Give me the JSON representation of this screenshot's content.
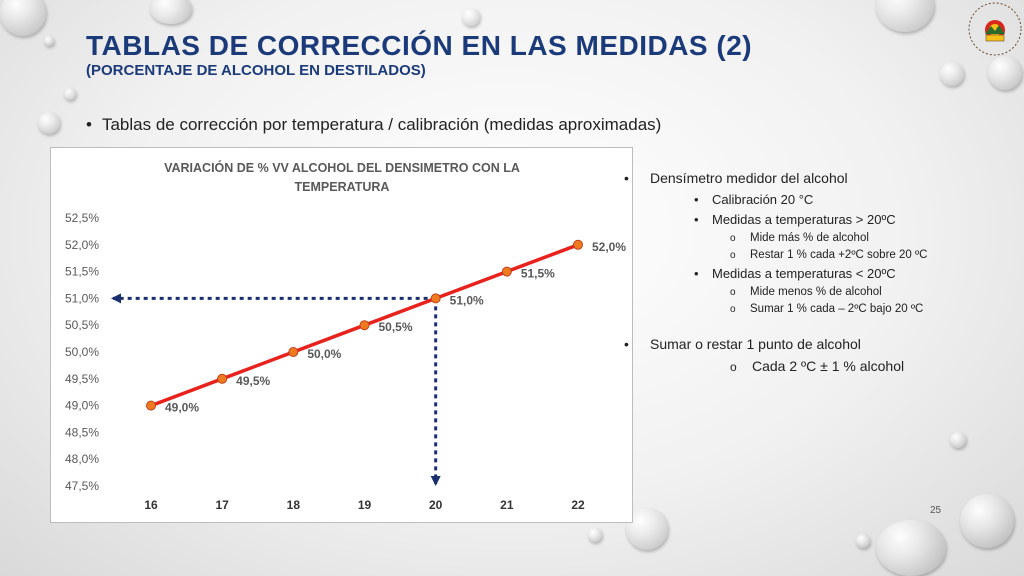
{
  "slide": {
    "title": "TABLAS DE CORRECCIÓN EN LAS MEDIDAS (2)",
    "subtitle": "(PORCENTAJE DE ALCOHOL EN DESTILADOS)",
    "main_bullet": "Tablas de corrección por temperatura / calibración (medidas aproximadas)",
    "page_number": "25",
    "logo_text": "Club Sierreño Amigos de la Montaña"
  },
  "right_panel": {
    "item1": "Densímetro medidor del alcohol",
    "item1_sub1": "Calibración 20 °C",
    "item1_sub2": "Medidas a temperaturas > 20ºC",
    "item1_sub2_a": "Mide más % de alcohol",
    "item1_sub2_b": "Restar 1 % cada +2ºC sobre 20 ºC",
    "item1_sub3": "Medidas a temperaturas < 20ºC",
    "item1_sub3_a": "Mide menos % de alcohol",
    "item1_sub3_b": "Sumar 1 % cada – 2ºC bajo 20 ºC",
    "item2": "Sumar o restar 1 punto de alcohol",
    "item2_sub1": "Cada 2 ºC  ±  1 % alcohol"
  },
  "chart_data": {
    "type": "line",
    "title": "VARIACIÓN DE % VV ALCOHOL DEL DENSIMETRO CON LA TEMPERATURA",
    "x": [
      16,
      17,
      18,
      19,
      20,
      21,
      22
    ],
    "values": [
      49.0,
      49.5,
      50.0,
      50.5,
      51.0,
      51.5,
      52.0
    ],
    "data_labels": [
      "49,0%",
      "49,5%",
      "50,0%",
      "50,5%",
      "51,0%",
      "51,5%",
      "52,0%"
    ],
    "y_ticks": [
      "47,5%",
      "48,0%",
      "48,5%",
      "49,0%",
      "49,5%",
      "50,0%",
      "50,5%",
      "51,0%",
      "51,5%",
      "52,0%",
      "52,5%"
    ],
    "ylim": [
      47.5,
      52.5
    ],
    "xlabel": "",
    "ylabel": "",
    "grid": false,
    "line_color": "#e8211d",
    "marker_color": "#f07a20",
    "annotation": {
      "x": 20,
      "y": 51.0,
      "style": "dashed-arrows",
      "color": "#1a2f6e"
    }
  },
  "colors": {
    "title": "#1b3a7a",
    "line": "#e8211d",
    "marker": "#f07a20",
    "arrow": "#1a2f6e"
  }
}
